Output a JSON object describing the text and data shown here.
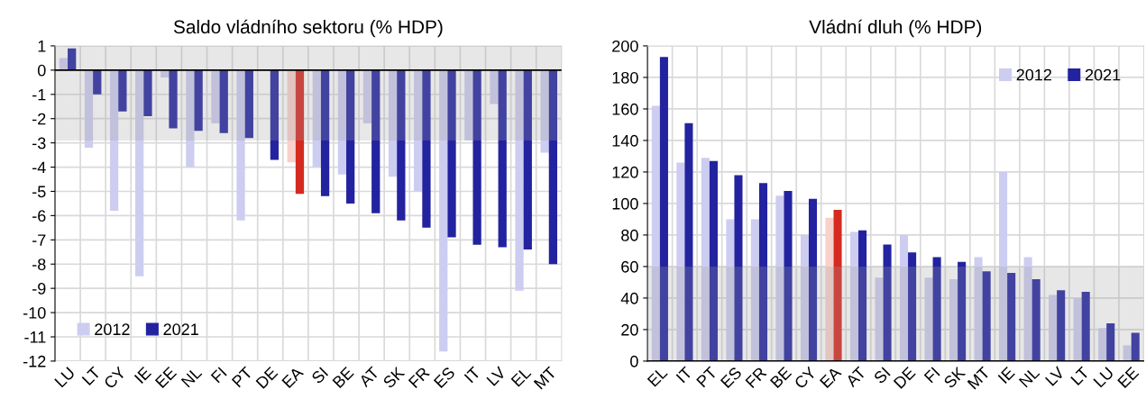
{
  "chart_data": [
    {
      "type": "bar",
      "title": "Saldo vládního sektoru (% HDP)",
      "categories": [
        "LU",
        "LT",
        "CY",
        "IE",
        "EE",
        "NL",
        "FI",
        "PT",
        "DE",
        "EA",
        "SI",
        "BE",
        "AT",
        "SK",
        "FR",
        "ES",
        "IT",
        "LV",
        "EL",
        "MT"
      ],
      "series": [
        {
          "name": "2012",
          "color": "#cccdf0",
          "colors": [
            "#cccdf0",
            "#cccdf0",
            "#cccdf0",
            "#cccdf0",
            "#cccdf0",
            "#cccdf0",
            "#cccdf0",
            "#cccdf0",
            "#cccdf0",
            "#f8d0cc",
            "#cccdf0",
            "#cccdf0",
            "#cccdf0",
            "#cccdf0",
            "#cccdf0",
            "#cccdf0",
            "#cccdf0",
            "#cccdf0",
            "#cccdf0",
            "#cccdf0"
          ],
          "values": [
            0.5,
            -3.2,
            -5.8,
            -8.5,
            -0.3,
            -4.0,
            -2.2,
            -6.2,
            0,
            -3.8,
            -4.0,
            -4.3,
            -2.2,
            -4.4,
            -5.0,
            -11.6,
            -2.9,
            -1.4,
            -9.1,
            -3.4
          ]
        },
        {
          "name": "2021",
          "color": "#2323a0",
          "colors": [
            "#2323a0",
            "#2323a0",
            "#2323a0",
            "#2323a0",
            "#2323a0",
            "#2323a0",
            "#2323a0",
            "#2323a0",
            "#2323a0",
            "#d42a20",
            "#2323a0",
            "#2323a0",
            "#2323a0",
            "#2323a0",
            "#2323a0",
            "#2323a0",
            "#2323a0",
            "#2323a0",
            "#2323a0",
            "#2323a0"
          ],
          "values": [
            0.9,
            -1.0,
            -1.7,
            -1.9,
            -2.4,
            -2.5,
            -2.6,
            -2.8,
            -3.7,
            -5.1,
            -5.2,
            -5.5,
            -5.9,
            -6.2,
            -6.5,
            -6.9,
            -7.2,
            -7.3,
            -7.4,
            -8.0
          ]
        }
      ],
      "ylim": [
        -12,
        1
      ],
      "yticks": [
        -12,
        -11,
        -10,
        -9,
        -8,
        -7,
        -6,
        -5,
        -4,
        -3,
        -2,
        -1,
        0,
        1
      ],
      "bands": [
        {
          "axis": "y",
          "from": -2.9,
          "to": 1,
          "color": "#a0a0a0"
        }
      ],
      "grid": true,
      "legend": "bottom left"
    },
    {
      "type": "bar",
      "title": "Vládní dluh (% HDP)",
      "categories": [
        "EL",
        "IT",
        "PT",
        "ES",
        "FR",
        "BE",
        "CY",
        "EA",
        "AT",
        "SI",
        "DE",
        "FI",
        "SK",
        "MT",
        "IE",
        "NL",
        "LV",
        "LT",
        "LU",
        "EE"
      ],
      "series": [
        {
          "name": "2012",
          "color": "#cccdf0",
          "colors": [
            "#cccdf0",
            "#cccdf0",
            "#cccdf0",
            "#cccdf0",
            "#cccdf0",
            "#cccdf0",
            "#cccdf0",
            "#f8d0cc",
            "#cccdf0",
            "#cccdf0",
            "#cccdf0",
            "#cccdf0",
            "#cccdf0",
            "#cccdf0",
            "#cccdf0",
            "#cccdf0",
            "#cccdf0",
            "#cccdf0",
            "#cccdf0",
            "#cccdf0"
          ],
          "values": [
            162,
            126,
            129,
            90,
            90,
            105,
            80,
            91,
            82,
            53,
            80,
            53,
            52,
            66,
            120,
            66,
            42,
            40,
            21,
            10
          ]
        },
        {
          "name": "2021",
          "color": "#2323a0",
          "colors": [
            "#2323a0",
            "#2323a0",
            "#2323a0",
            "#2323a0",
            "#2323a0",
            "#2323a0",
            "#2323a0",
            "#d42a20",
            "#2323a0",
            "#2323a0",
            "#2323a0",
            "#2323a0",
            "#2323a0",
            "#2323a0",
            "#2323a0",
            "#2323a0",
            "#2323a0",
            "#2323a0",
            "#2323a0",
            "#2323a0"
          ],
          "values": [
            193,
            151,
            127,
            118,
            113,
            108,
            103,
            96,
            83,
            74,
            69,
            66,
            63,
            57,
            56,
            52,
            45,
            44,
            24,
            18
          ]
        }
      ],
      "ylim": [
        0,
        200
      ],
      "yticks": [
        0,
        20,
        40,
        60,
        80,
        100,
        120,
        140,
        160,
        180,
        200
      ],
      "bands": [
        {
          "axis": "y",
          "from": 0,
          "to": 60,
          "color": "#a0a0a0"
        }
      ],
      "grid": true,
      "legend": "top right"
    }
  ]
}
